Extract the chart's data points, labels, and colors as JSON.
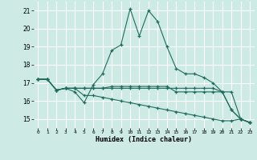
{
  "xlabel": "Humidex (Indice chaleur)",
  "background_color": "#cdeae5",
  "grid_color": "#b0d8d2",
  "line_color": "#1e6b5e",
  "xlim": [
    -0.5,
    23.5
  ],
  "ylim": [
    14.5,
    21.5
  ],
  "yticks": [
    15,
    16,
    17,
    18,
    19,
    20,
    21
  ],
  "xticks": [
    0,
    1,
    2,
    3,
    4,
    5,
    6,
    7,
    8,
    9,
    10,
    11,
    12,
    13,
    14,
    15,
    16,
    17,
    18,
    19,
    20,
    21,
    22,
    23
  ],
  "series": [
    [
      17.2,
      17.2,
      16.6,
      16.7,
      16.5,
      15.9,
      16.9,
      17.5,
      18.8,
      19.1,
      21.1,
      19.6,
      21.0,
      20.4,
      19.0,
      17.8,
      17.5,
      17.5,
      17.3,
      17.0,
      16.5,
      15.5,
      15.0,
      14.8
    ],
    [
      17.2,
      17.2,
      16.6,
      16.7,
      16.7,
      16.7,
      16.7,
      16.7,
      16.8,
      16.8,
      16.8,
      16.8,
      16.8,
      16.8,
      16.8,
      16.5,
      16.5,
      16.5,
      16.5,
      16.5,
      16.5,
      16.5,
      15.0,
      14.8
    ],
    [
      17.2,
      17.2,
      16.6,
      16.7,
      16.7,
      16.7,
      16.7,
      16.7,
      16.7,
      16.7,
      16.7,
      16.7,
      16.7,
      16.7,
      16.7,
      16.7,
      16.7,
      16.7,
      16.7,
      16.7,
      16.5,
      15.5,
      15.0,
      14.8
    ],
    [
      17.2,
      17.2,
      16.6,
      16.7,
      16.7,
      16.3,
      16.3,
      16.2,
      16.1,
      16.0,
      15.9,
      15.8,
      15.7,
      15.6,
      15.5,
      15.4,
      15.3,
      15.2,
      15.1,
      15.0,
      14.9,
      14.9,
      15.0,
      14.8
    ]
  ]
}
